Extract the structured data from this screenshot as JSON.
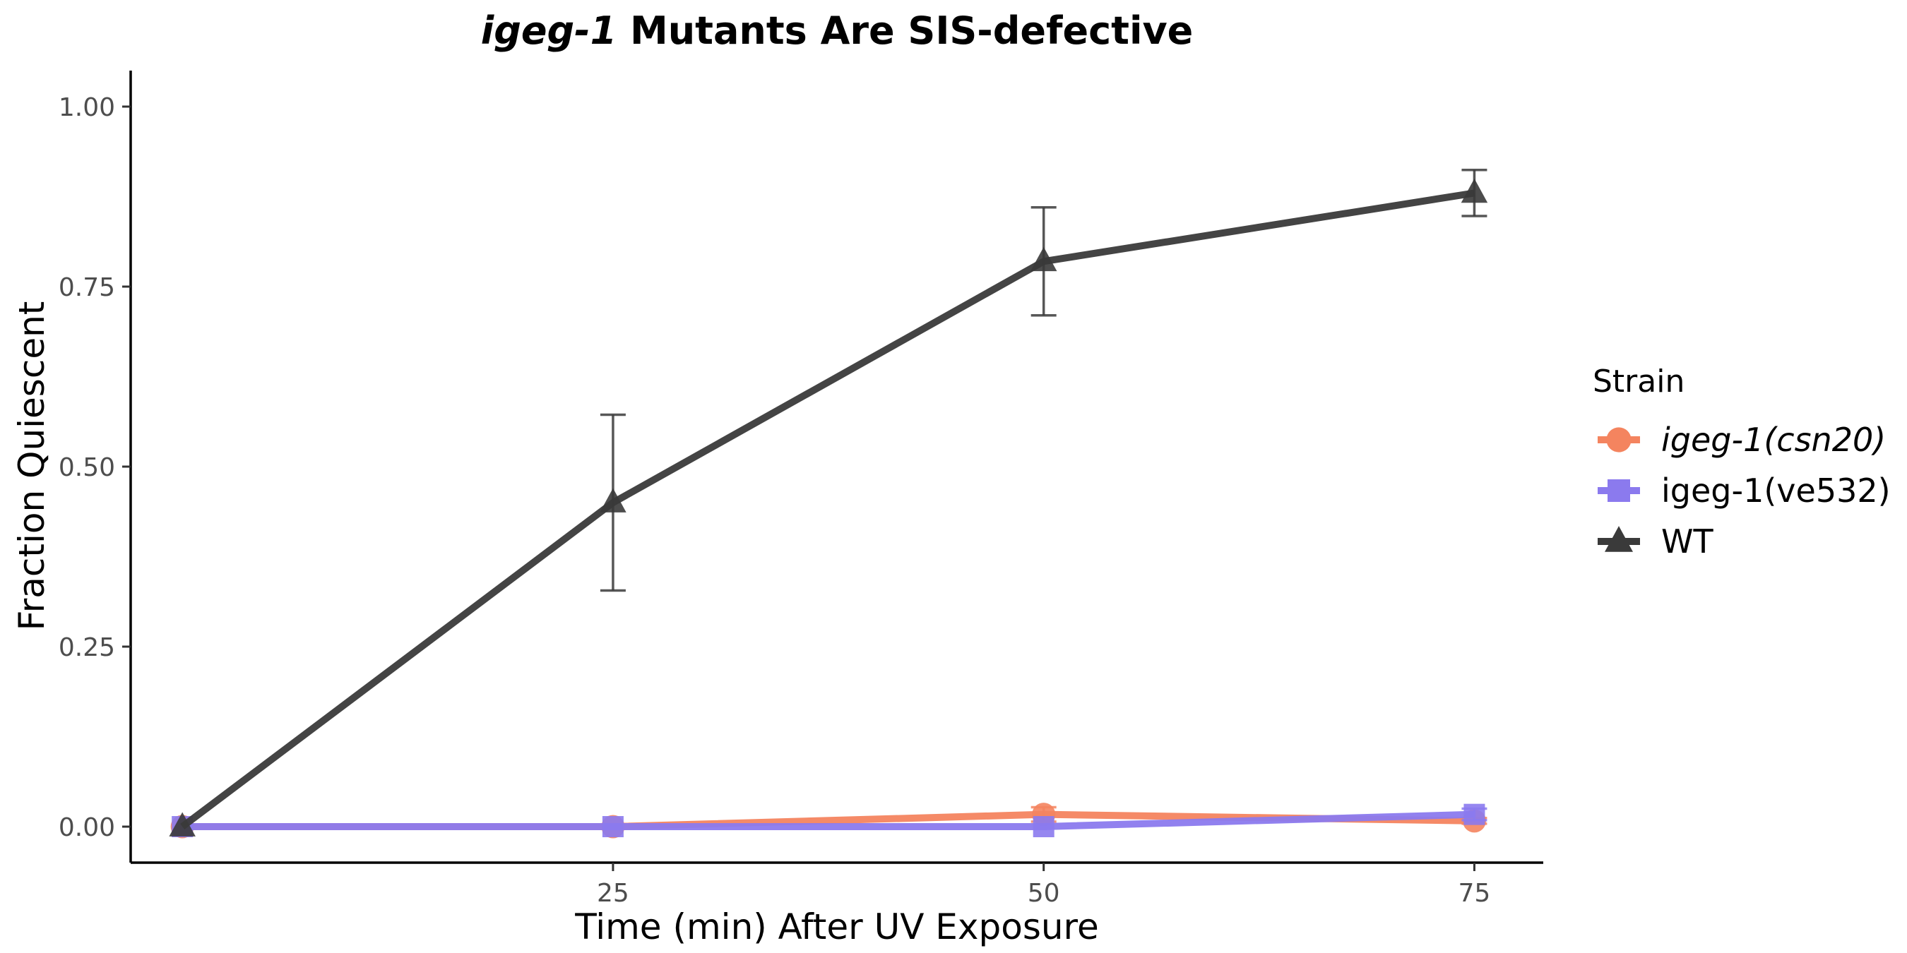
{
  "chart_data": {
    "type": "line",
    "title_italic": "igeg-1",
    "title_rest": " Mutants Are SIS-defective",
    "xlabel": "Time (min) After UV Exposure",
    "ylabel": "Fraction Quiescent",
    "xlim": [
      -3,
      79
    ],
    "ylim": [
      -0.05,
      1.05
    ],
    "x_ticks": [
      25,
      50,
      75
    ],
    "y_ticks": [
      0.0,
      0.25,
      0.5,
      0.75,
      1.0
    ],
    "y_tick_labels": [
      "0.00",
      "0.25",
      "0.50",
      "0.75",
      "1.00"
    ],
    "grid": false,
    "legend_position": "right",
    "legend_title": "Strain",
    "series": [
      {
        "name": "igeg-1(csn20)",
        "italic": true,
        "color": "#F4845F",
        "marker": "circle",
        "x": [
          0,
          25,
          50,
          75
        ],
        "y": [
          0.0,
          0.0,
          0.017,
          0.008
        ],
        "err": [
          0.0,
          0.0,
          0.01,
          0.004
        ]
      },
      {
        "name": "igeg-1(ve532)",
        "italic": false,
        "color": "#8B7AEE",
        "marker": "square",
        "x": [
          0,
          25,
          50,
          75
        ],
        "y": [
          0.0,
          0.0,
          0.0,
          0.017
        ],
        "err": [
          0.0,
          0.0,
          0.0,
          0.008
        ]
      },
      {
        "name": "WT",
        "italic": false,
        "color": "#3a3a3a",
        "marker": "triangle",
        "x": [
          0,
          25,
          50,
          75
        ],
        "y": [
          0.0,
          0.45,
          0.785,
          0.88
        ],
        "err": [
          0.0,
          0.122,
          0.075,
          0.032
        ]
      }
    ]
  }
}
